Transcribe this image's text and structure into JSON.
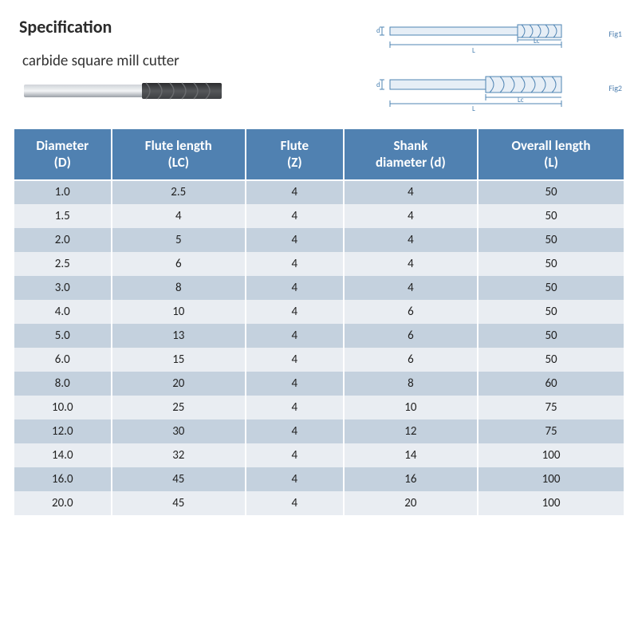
{
  "title": "Specification",
  "subtitle": "carbide square mill cutter",
  "diagrams": {
    "fig1_label": "Fig1",
    "fig2_label": "Fig2",
    "dims": {
      "L": "L",
      "Lc": "Lc",
      "d": "d"
    },
    "line_color": "#4f84b3",
    "fill_color": "#e6eef6"
  },
  "product_image": {
    "shank_color1": "#cfd3d8",
    "shank_color2": "#9aa0a7",
    "flute_color1": "#2b2c2e",
    "flute_color2": "#3d3f42"
  },
  "colors": {
    "header_bg": "#5081b1",
    "row_odd": "#c4d1de",
    "row_even": "#e9edf2",
    "text": "#222222",
    "header_text": "#ffffff",
    "border": "#ffffff"
  },
  "table": {
    "columns": [
      {
        "line1": "Diameter",
        "line2": "(D)",
        "width": "16%"
      },
      {
        "line1": "Flute length",
        "line2": "(LC)",
        "width": "22%"
      },
      {
        "line1": "Flute",
        "line2": "(Z)",
        "width": "16%"
      },
      {
        "line1": "Shank",
        "line2": "diameter (d)",
        "width": "22%"
      },
      {
        "line1": "Overall length",
        "line2": "(L)",
        "width": "24%"
      }
    ],
    "rows": [
      [
        "1.0",
        "2.5",
        "4",
        "4",
        "50"
      ],
      [
        "1.5",
        "4",
        "4",
        "4",
        "50"
      ],
      [
        "2.0",
        "5",
        "4",
        "4",
        "50"
      ],
      [
        "2.5",
        "6",
        "4",
        "4",
        "50"
      ],
      [
        "3.0",
        "8",
        "4",
        "4",
        "50"
      ],
      [
        "4.0",
        "10",
        "4",
        "6",
        "50"
      ],
      [
        "5.0",
        "13",
        "4",
        "6",
        "50"
      ],
      [
        "6.0",
        "15",
        "4",
        "6",
        "50"
      ],
      [
        "8.0",
        "20",
        "4",
        "8",
        "60"
      ],
      [
        "10.0",
        "25",
        "4",
        "10",
        "75"
      ],
      [
        "12.0",
        "30",
        "4",
        "12",
        "75"
      ],
      [
        "14.0",
        "32",
        "4",
        "14",
        "100"
      ],
      [
        "16.0",
        "45",
        "4",
        "16",
        "100"
      ],
      [
        "20.0",
        "45",
        "4",
        "20",
        "100"
      ]
    ]
  }
}
